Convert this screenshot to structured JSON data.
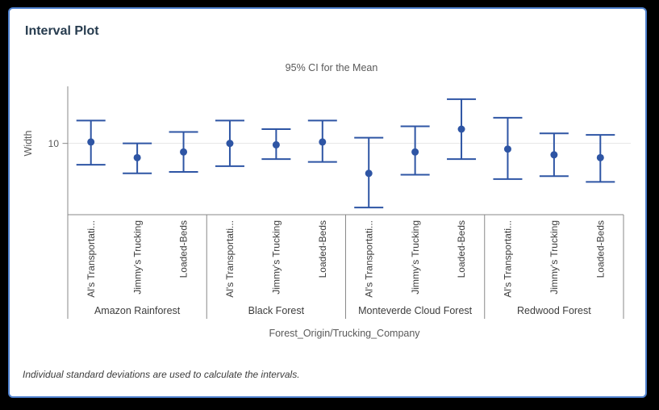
{
  "window": {
    "background_color": "#000000",
    "card_border_color": "#4f81ce"
  },
  "report": {
    "title": "Interval Plot",
    "footnote": "Individual standard deviations are used to calculate the intervals."
  },
  "chart_data": {
    "type": "interval_plot",
    "subtitle": "95% CI for the Mean",
    "ylabel": "Width",
    "xlabel": "Forest_Origin/Trucking_Company",
    "y_axis": {
      "min": 5,
      "max": 14,
      "ticks": [
        10
      ]
    },
    "grid": "horizontal-at-ticks",
    "legend": "none",
    "interval_color": "#2e55a4",
    "groups": [
      {
        "label": "Amazon Rainforest",
        "items": [
          {
            "label": "Al's Transportati...",
            "mean": 10.1,
            "lower": 8.5,
            "upper": 11.6
          },
          {
            "label": "Jimmy's Trucking",
            "mean": 9.0,
            "lower": 7.9,
            "upper": 10.0
          },
          {
            "label": "Loaded-Beds",
            "mean": 9.4,
            "lower": 8.0,
            "upper": 10.8
          }
        ]
      },
      {
        "label": "Black Forest",
        "items": [
          {
            "label": "Al's Transportati...",
            "mean": 10.0,
            "lower": 8.4,
            "upper": 11.6
          },
          {
            "label": "Jimmy's Trucking",
            "mean": 9.9,
            "lower": 8.9,
            "upper": 11.0
          },
          {
            "label": "Loaded-Beds",
            "mean": 10.1,
            "lower": 8.7,
            "upper": 11.6
          }
        ]
      },
      {
        "label": "Monteverde Cloud Forest",
        "items": [
          {
            "label": "Al's Transportati...",
            "mean": 7.9,
            "lower": 5.5,
            "upper": 10.4
          },
          {
            "label": "Jimmy's Trucking",
            "mean": 9.4,
            "lower": 7.8,
            "upper": 11.2
          },
          {
            "label": "Loaded-Beds",
            "mean": 11.0,
            "lower": 8.9,
            "upper": 13.1
          }
        ]
      },
      {
        "label": "Redwood Forest",
        "items": [
          {
            "label": "Al's Transportati...",
            "mean": 9.6,
            "lower": 7.5,
            "upper": 11.8
          },
          {
            "label": "Jimmy's Trucking",
            "mean": 9.2,
            "lower": 7.7,
            "upper": 10.7
          },
          {
            "label": "Loaded-Beds",
            "mean": 9.0,
            "lower": 7.3,
            "upper": 10.6
          }
        ]
      }
    ]
  }
}
